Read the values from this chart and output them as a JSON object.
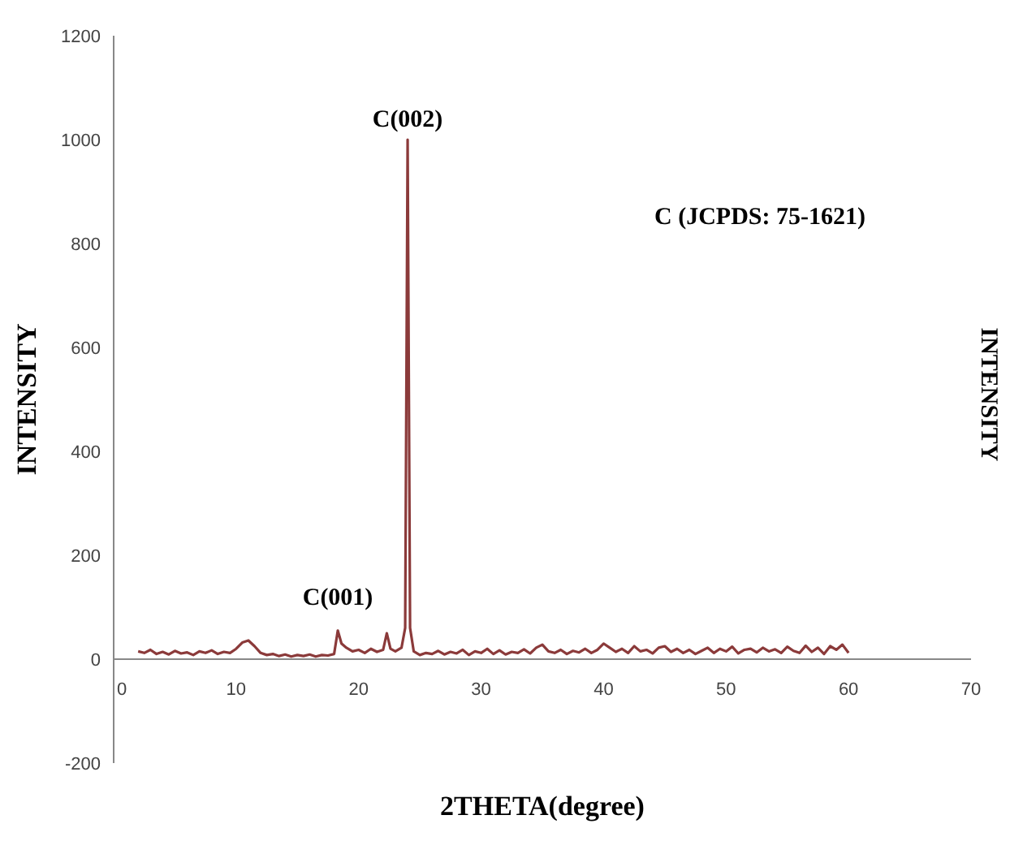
{
  "chart_data": {
    "type": "line",
    "xlabel": "2THETA(degree)",
    "ylabel": "INTENSITY",
    "y2label": "INTENSITY",
    "annotations": [
      {
        "text": "C(002)",
        "x": 24,
        "y": 1000
      },
      {
        "text": "C(001)",
        "x": 18.3,
        "y": 55
      },
      "C (JCPDS: 75-1621)"
    ],
    "xlim": [
      0,
      70
    ],
    "xticks": [
      0,
      10,
      20,
      30,
      40,
      50,
      60,
      70
    ],
    "ylim": [
      -200,
      1200
    ],
    "yticks": [
      -200,
      0,
      200,
      400,
      600,
      800,
      1000,
      1200
    ],
    "marker": "none",
    "line_style": "solid",
    "series": [
      {
        "color": "#8b3a3a",
        "x": [
          2,
          2.5,
          3,
          3.5,
          4,
          4.5,
          5,
          5.5,
          6,
          6.5,
          7,
          7.5,
          8,
          8.5,
          9,
          9.5,
          10,
          10.5,
          11,
          11.5,
          12,
          12.5,
          13,
          13.5,
          14,
          14.5,
          15,
          15.5,
          16,
          16.5,
          17,
          17.5,
          18,
          18.3,
          18.6,
          19,
          19.5,
          20,
          20.5,
          21,
          21.5,
          22,
          22.3,
          22.6,
          23,
          23.5,
          23.8,
          24,
          24.2,
          24.5,
          25,
          25.5,
          26,
          26.5,
          27,
          27.5,
          28,
          28.5,
          29,
          29.5,
          30,
          30.5,
          31,
          31.5,
          32,
          32.5,
          33,
          33.5,
          34,
          34.5,
          35,
          35.5,
          36,
          36.5,
          37,
          37.5,
          38,
          38.5,
          39,
          39.5,
          40,
          40.5,
          41,
          41.5,
          42,
          42.5,
          43,
          43.5,
          44,
          44.5,
          45,
          45.5,
          46,
          46.5,
          47,
          47.5,
          48,
          48.5,
          49,
          49.5,
          50,
          50.5,
          51,
          51.5,
          52,
          52.5,
          53,
          53.5,
          54,
          54.5,
          55,
          55.5,
          56,
          56.5,
          57,
          57.5,
          58,
          58.5,
          59,
          59.5,
          60
        ],
        "values": [
          15,
          12,
          18,
          10,
          14,
          9,
          16,
          11,
          13,
          8,
          15,
          12,
          17,
          10,
          14,
          12,
          20,
          32,
          36,
          25,
          12,
          8,
          10,
          6,
          9,
          5,
          8,
          6,
          9,
          5,
          8,
          7,
          10,
          55,
          30,
          22,
          15,
          18,
          12,
          20,
          14,
          18,
          50,
          20,
          15,
          22,
          60,
          1000,
          60,
          15,
          8,
          12,
          10,
          16,
          9,
          14,
          11,
          18,
          8,
          15,
          12,
          20,
          10,
          17,
          9,
          14,
          12,
          19,
          11,
          22,
          28,
          15,
          12,
          18,
          10,
          16,
          13,
          20,
          12,
          18,
          30,
          22,
          14,
          20,
          12,
          25,
          15,
          18,
          11,
          22,
          25,
          14,
          20,
          12,
          18,
          10,
          16,
          22,
          12,
          20,
          15,
          24,
          11,
          18,
          20,
          13,
          22,
          15,
          19,
          12,
          24,
          16,
          12,
          26,
          14,
          22,
          10,
          25,
          18,
          28,
          12
        ]
      }
    ]
  }
}
